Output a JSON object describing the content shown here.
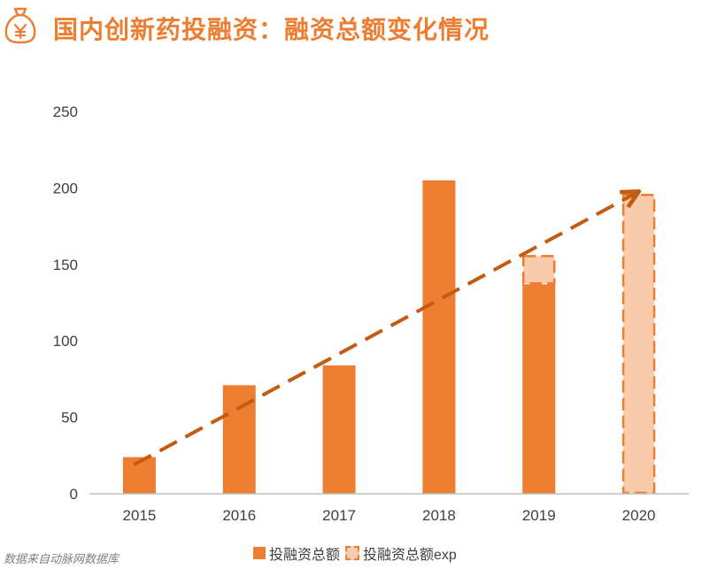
{
  "header": {
    "title": "国内创新药投融资：融资总额变化情况",
    "icon": "money-bag-yen-icon"
  },
  "colors": {
    "accent": "#ED7D31",
    "exp_fill": "#F8CBAD",
    "trend": "#C55A11",
    "axis": "#BFBFBF",
    "text": "#404040"
  },
  "chart_data": {
    "type": "bar",
    "title": "国内创新药投融资：融资总额变化情况",
    "categories": [
      "2015",
      "2016",
      "2017",
      "2018",
      "2019",
      "2020"
    ],
    "series": [
      {
        "name": "投融资总额",
        "values": [
          24,
          71,
          84,
          205,
          137,
          null
        ]
      },
      {
        "name": "投融资总额exp",
        "values": [
          null,
          null,
          null,
          null,
          19,
          196
        ]
      }
    ],
    "stacked": true,
    "trendline": {
      "type": "linear",
      "style": "dashed arrow",
      "from": [
        2015,
        19
      ],
      "to": [
        2020,
        197
      ]
    },
    "ylim": [
      0,
      250
    ],
    "yticks": [
      0,
      50,
      100,
      150,
      200,
      250
    ],
    "xlabel": "",
    "ylabel": "",
    "grid": false,
    "legend": "bottom"
  },
  "legend": {
    "items": [
      "投融资总额",
      "投融资总额exp"
    ]
  },
  "source_note": "数据来自动脉网数据库"
}
